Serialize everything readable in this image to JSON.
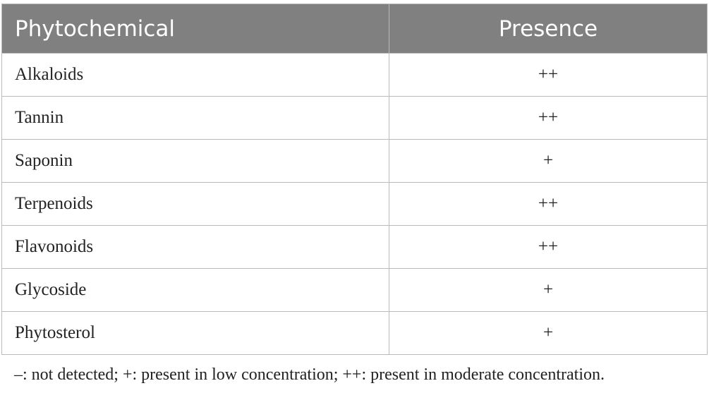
{
  "table": {
    "header": [
      "Phytochemical",
      "Presence"
    ],
    "rows": [
      [
        "Alkaloids",
        "++"
      ],
      [
        "Tannin",
        "++"
      ],
      [
        "Saponin",
        "+"
      ],
      [
        "Terpenoids",
        "++"
      ],
      [
        "Flavonoids",
        "++"
      ],
      [
        "Glycoside",
        "+"
      ],
      [
        "Phytosterol",
        "+"
      ]
    ]
  },
  "footnote": "–: not detected; +: present in low concentration; ++: present in moderate concentration."
}
